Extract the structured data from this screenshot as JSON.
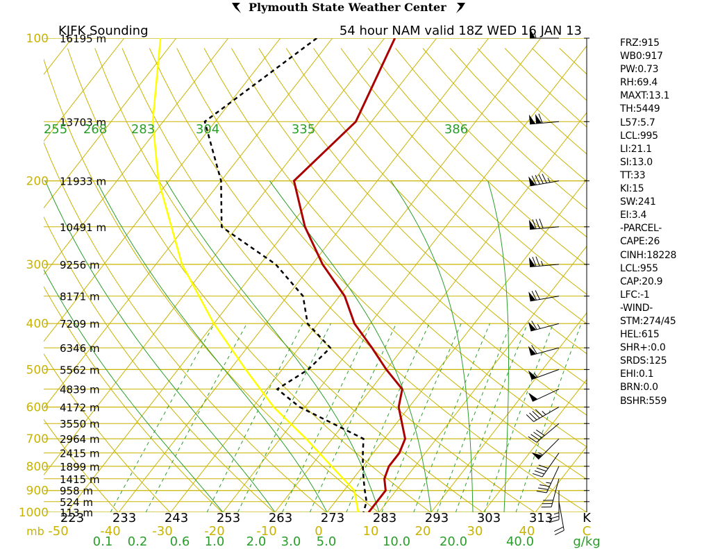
{
  "header": {
    "title": "Plymouth State Weather Center",
    "logo": "psc-wing-icon"
  },
  "chart_data": {
    "type": "skew-t",
    "station_label": "KJFK Sounding",
    "valid_label": "54 hour NAM valid 18Z WED 16 JAN 13",
    "pressure_axis_unit": "mb",
    "pressure_ticks": [
      "100",
      "200",
      "300",
      "400",
      "500",
      "600",
      "700",
      "800",
      "900",
      "1000"
    ],
    "height_labels": [
      {
        "p": 100,
        "text": "16195 m"
      },
      {
        "p": 150,
        "text": "13703 m"
      },
      {
        "p": 200,
        "text": "11933 m"
      },
      {
        "p": 250,
        "text": "10491 m"
      },
      {
        "p": 300,
        "text": "9256 m"
      },
      {
        "p": 350,
        "text": "8171 m"
      },
      {
        "p": 400,
        "text": "7209 m"
      },
      {
        "p": 450,
        "text": "6346 m"
      },
      {
        "p": 500,
        "text": "5562 m"
      },
      {
        "p": 550,
        "text": "4839 m"
      },
      {
        "p": 600,
        "text": "4172 m"
      },
      {
        "p": 650,
        "text": "3550 m"
      },
      {
        "p": 700,
        "text": "2964 m"
      },
      {
        "p": 750,
        "text": "2415 m"
      },
      {
        "p": 800,
        "text": "1899 m"
      },
      {
        "p": 850,
        "text": "1415 m"
      },
      {
        "p": 900,
        "text": "958 m"
      },
      {
        "p": 950,
        "text": "524 m"
      },
      {
        "p": 1000,
        "text": "113 m"
      }
    ],
    "temp_axis_unit": "C",
    "temp_ticks": [
      "-50",
      "-40",
      "-30",
      "-20",
      "-10",
      "0",
      "10",
      "20",
      "30",
      "40",
      "C"
    ],
    "kelvin_ticks": [
      "223",
      "233",
      "243",
      "253",
      "263",
      "273",
      "283",
      "293",
      "303",
      "313",
      "K"
    ],
    "mixing_ratio_unit": "g/kg",
    "mixing_ratio_ticks": [
      "0.1",
      "0.2",
      "0.6",
      "1.0",
      "2.0",
      "3.0",
      "5.0",
      "10.0",
      "20.0",
      "40.0",
      "g/kg"
    ],
    "theta_e_labels": [
      "255",
      "268",
      "283",
      "304",
      "335",
      "386"
    ],
    "temperature_profile": [
      {
        "p": 100,
        "t": -58
      },
      {
        "p": 150,
        "t": -53
      },
      {
        "p": 200,
        "t": -56
      },
      {
        "p": 250,
        "t": -47
      },
      {
        "p": 300,
        "t": -38
      },
      {
        "p": 350,
        "t": -29
      },
      {
        "p": 400,
        "t": -23
      },
      {
        "p": 450,
        "t": -16
      },
      {
        "p": 500,
        "t": -10
      },
      {
        "p": 550,
        "t": -4
      },
      {
        "p": 600,
        "t": -2
      },
      {
        "p": 700,
        "t": 4
      },
      {
        "p": 750,
        "t": 5
      },
      {
        "p": 800,
        "t": 5
      },
      {
        "p": 850,
        "t": 6
      },
      {
        "p": 900,
        "t": 8
      },
      {
        "p": 950,
        "t": 8
      },
      {
        "p": 1000,
        "t": 8
      }
    ],
    "dewpoint_profile": [
      {
        "p": 100,
        "t": -73
      },
      {
        "p": 150,
        "t": -82
      },
      {
        "p": 200,
        "t": -70
      },
      {
        "p": 250,
        "t": -63
      },
      {
        "p": 300,
        "t": -47
      },
      {
        "p": 350,
        "t": -37
      },
      {
        "p": 400,
        "t": -32
      },
      {
        "p": 450,
        "t": -24
      },
      {
        "p": 500,
        "t": -25
      },
      {
        "p": 550,
        "t": -28
      },
      {
        "p": 600,
        "t": -21
      },
      {
        "p": 700,
        "t": -4
      },
      {
        "p": 750,
        "t": -2
      },
      {
        "p": 800,
        "t": 0
      },
      {
        "p": 850,
        "t": 2
      },
      {
        "p": 900,
        "t": 4
      },
      {
        "p": 950,
        "t": 6
      },
      {
        "p": 1000,
        "t": 7
      }
    ],
    "parcel_profile": [
      {
        "p": 100,
        "t": -103
      },
      {
        "p": 150,
        "t": -92
      },
      {
        "p": 200,
        "t": -82
      },
      {
        "p": 300,
        "t": -65
      },
      {
        "p": 400,
        "t": -50
      },
      {
        "p": 500,
        "t": -37
      },
      {
        "p": 600,
        "t": -26
      },
      {
        "p": 700,
        "t": -15
      },
      {
        "p": 800,
        "t": -6
      },
      {
        "p": 900,
        "t": 2
      },
      {
        "p": 1000,
        "t": 6
      }
    ],
    "wind_barbs": [
      {
        "p": 100,
        "dir": 270,
        "kt": 55
      },
      {
        "p": 150,
        "dir": 265,
        "kt": 110
      },
      {
        "p": 200,
        "dir": 260,
        "kt": 95
      },
      {
        "p": 250,
        "dir": 265,
        "kt": 80
      },
      {
        "p": 300,
        "dir": 265,
        "kt": 75
      },
      {
        "p": 350,
        "dir": 260,
        "kt": 70
      },
      {
        "p": 400,
        "dir": 255,
        "kt": 65
      },
      {
        "p": 450,
        "dir": 255,
        "kt": 60
      },
      {
        "p": 500,
        "dir": 250,
        "kt": 55
      },
      {
        "p": 550,
        "dir": 245,
        "kt": 50
      },
      {
        "p": 600,
        "dir": 240,
        "kt": 45
      },
      {
        "p": 650,
        "dir": 230,
        "kt": 40
      },
      {
        "p": 700,
        "dir": 225,
        "kt": 55
      },
      {
        "p": 750,
        "dir": 215,
        "kt": 40
      },
      {
        "p": 800,
        "dir": 205,
        "kt": 35
      },
      {
        "p": 850,
        "dir": 195,
        "kt": 30
      },
      {
        "p": 900,
        "dir": 180,
        "kt": 25
      },
      {
        "p": 950,
        "dir": 170,
        "kt": 20
      }
    ],
    "colors": {
      "isobar": "#c8b400",
      "isotherm": "#c8b400",
      "dry_adiabat": "#c8b400",
      "moist_adiabat": "#2a9d2a",
      "mixing_ratio": "#2a9d2a",
      "temperature": "#aa0000",
      "dewpoint": "#000000",
      "parcel": "#ffff00",
      "axis_text": "#c8b400",
      "green_text": "#2a9d2a"
    }
  },
  "indices": [
    "FRZ:915",
    "WB0:917",
    "PW:0.73",
    "RH:69.4",
    "MAXT:13.1",
    "TH:5449",
    "L57:5.7",
    "LCL:995",
    "LI:21.1",
    "SI:13.0",
    "TT:33",
    "KI:15",
    "SW:241",
    "EI:3.4",
    "-PARCEL-",
    "CAPE:26",
    "CINH:18228",
    "LCL:955",
    "CAP:20.9",
    "LFC:-1",
    "-WIND-",
    "STM:274/45",
    "HEL:615",
    "SHR+:0.0",
    "SRDS:125",
    "EHI:0.1",
    "BRN:0.0",
    "BSHR:559"
  ]
}
